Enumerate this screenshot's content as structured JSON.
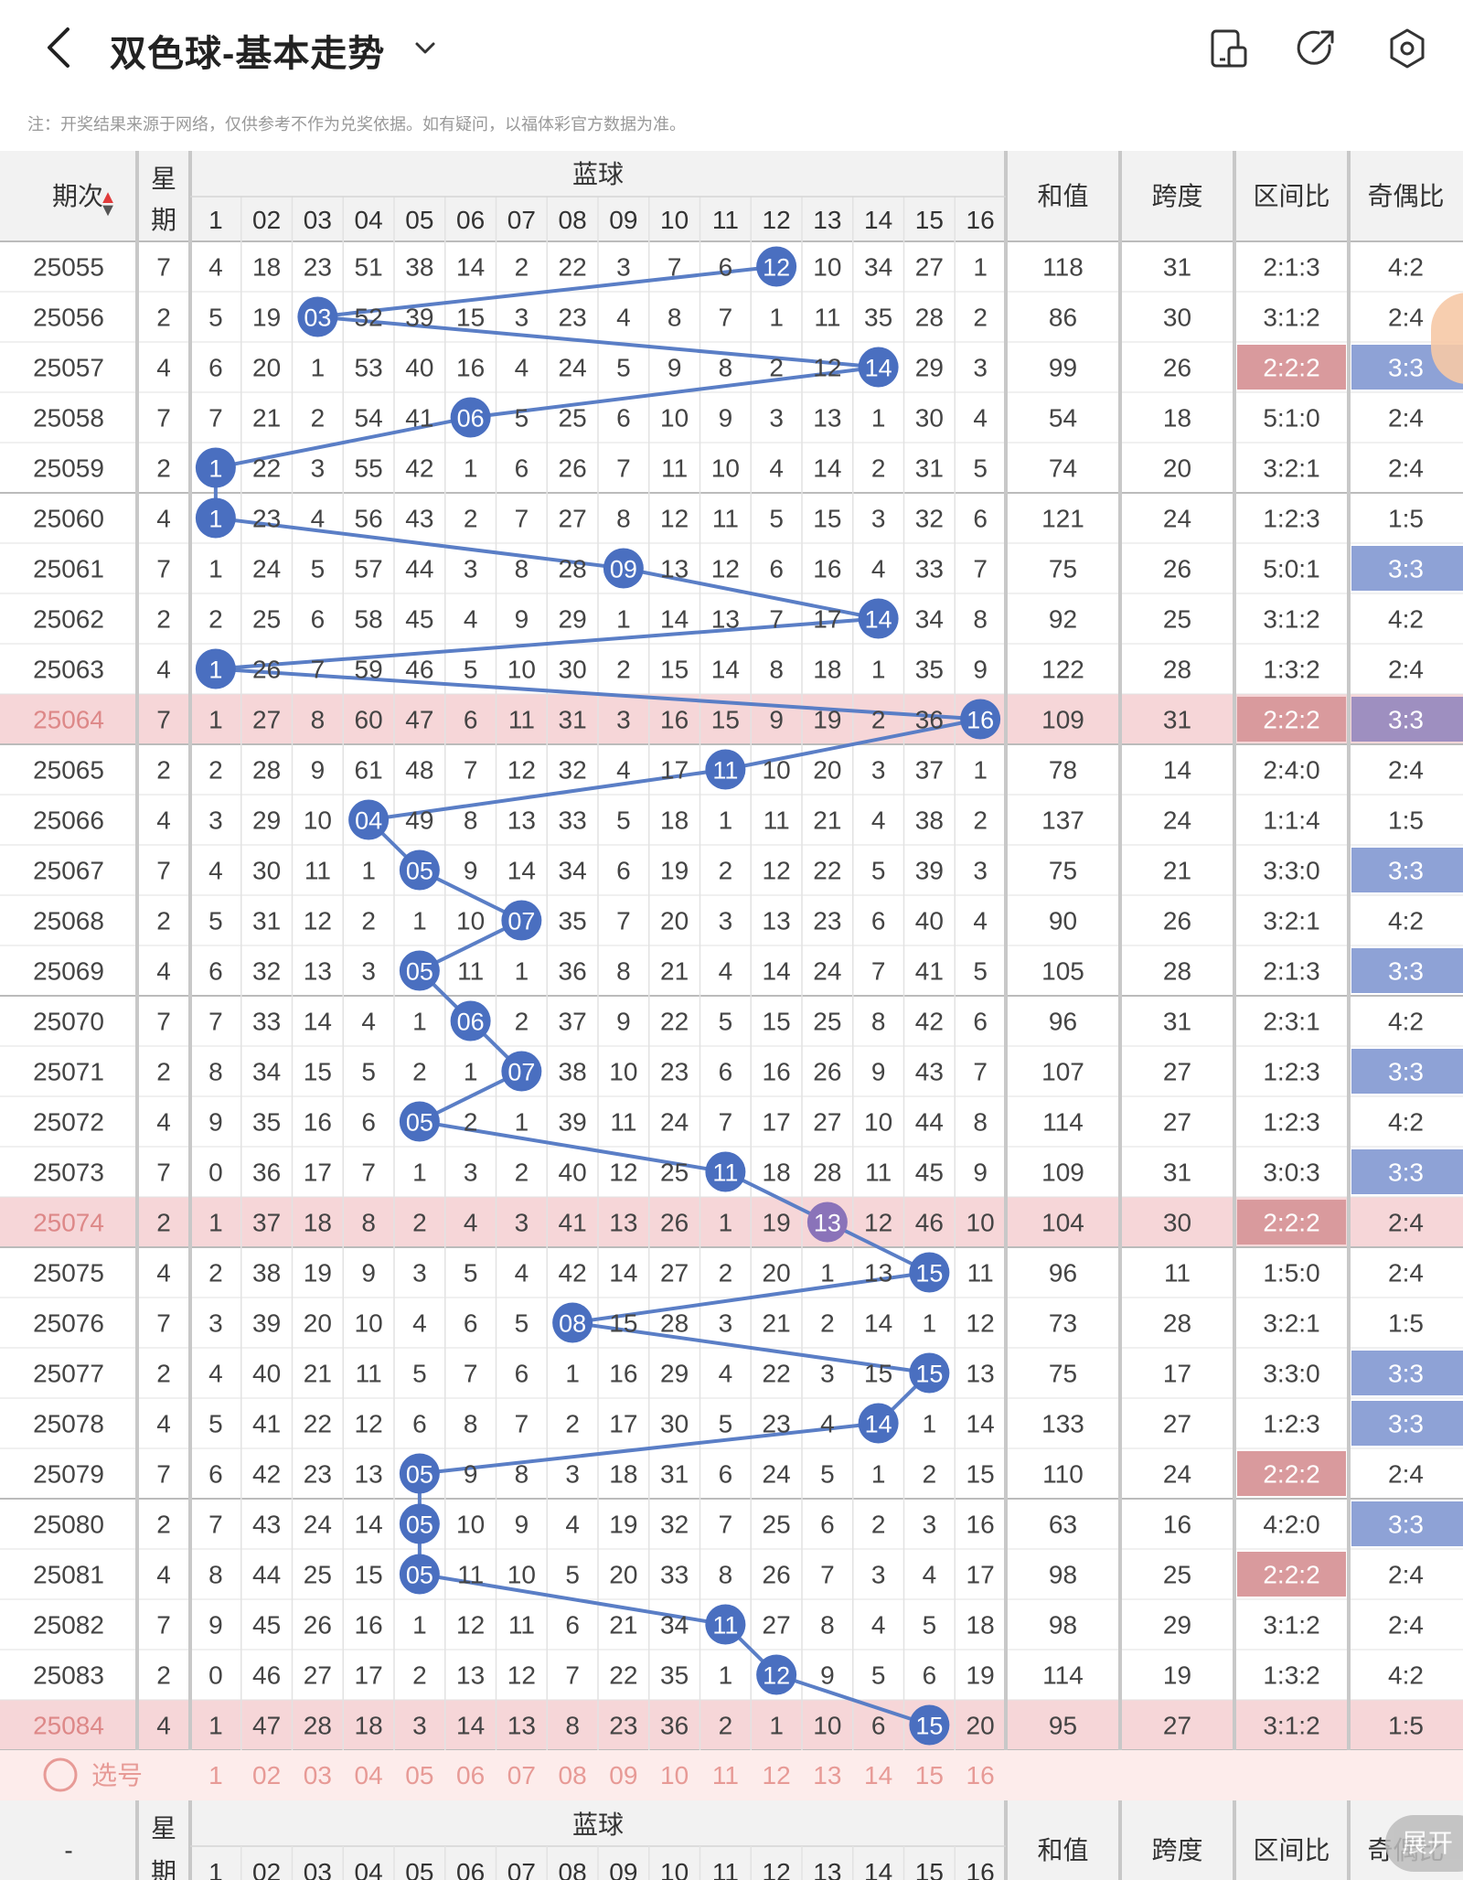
{
  "header": {
    "title": "双色球-基本走势",
    "icons": [
      "back-icon",
      "chevron-down-icon",
      "phone-icon",
      "share-icon",
      "settings-icon"
    ]
  },
  "note": "注：开奖结果来源于网络，仅供参考不作为兑奖依据。如有疑问，以福体彩官方数据为准。",
  "table": {
    "col_period": "期次",
    "col_week": "星\n期",
    "col_blue": "蓝球",
    "col_sum": "和值",
    "col_span": "跨度",
    "col_zone": "区间比",
    "col_oddeven": "奇偶比",
    "blue_labels": [
      "1",
      "02",
      "03",
      "04",
      "05",
      "06",
      "07",
      "08",
      "09",
      "10",
      "11",
      "12",
      "13",
      "14",
      "15",
      "16"
    ],
    "rows": [
      {
        "period": "25055",
        "week": "7",
        "cells": [
          "4",
          "18",
          "23",
          "51",
          "38",
          "14",
          "2",
          "22",
          "3",
          "7",
          "6",
          "12",
          "10",
          "34",
          "27",
          "1"
        ],
        "hit": 12,
        "sum": "118",
        "span": "31",
        "zone": "2:1:3",
        "oe": "4:2"
      },
      {
        "period": "25056",
        "week": "2",
        "cells": [
          "5",
          "19",
          "03",
          "52",
          "39",
          "15",
          "3",
          "23",
          "4",
          "8",
          "7",
          "1",
          "11",
          "35",
          "28",
          "2"
        ],
        "hit": 3,
        "sum": "86",
        "span": "30",
        "zone": "3:1:2",
        "oe": "2:4"
      },
      {
        "period": "25057",
        "week": "4",
        "cells": [
          "6",
          "20",
          "1",
          "53",
          "40",
          "16",
          "4",
          "24",
          "5",
          "9",
          "8",
          "2",
          "12",
          "14",
          "29",
          "3"
        ],
        "hit": 14,
        "sum": "99",
        "span": "26",
        "zone": "2:2:2",
        "oe": "3:3"
      },
      {
        "period": "25058",
        "week": "7",
        "cells": [
          "7",
          "21",
          "2",
          "54",
          "41",
          "06",
          "5",
          "25",
          "6",
          "10",
          "9",
          "3",
          "13",
          "1",
          "30",
          "4"
        ],
        "hit": 6,
        "sum": "54",
        "span": "18",
        "zone": "5:1:0",
        "oe": "2:4"
      },
      {
        "period": "25059",
        "week": "2",
        "cells": [
          "1",
          "22",
          "3",
          "55",
          "42",
          "1",
          "6",
          "26",
          "7",
          "11",
          "10",
          "4",
          "14",
          "2",
          "31",
          "5"
        ],
        "hit": 1,
        "sum": "74",
        "span": "20",
        "zone": "3:2:1",
        "oe": "2:4"
      },
      {
        "period": "25060",
        "week": "4",
        "cells": [
          "1",
          "23",
          "4",
          "56",
          "43",
          "2",
          "7",
          "27",
          "8",
          "12",
          "11",
          "5",
          "15",
          "3",
          "32",
          "6"
        ],
        "hit": 1,
        "sum": "121",
        "span": "24",
        "zone": "1:2:3",
        "oe": "1:5"
      },
      {
        "period": "25061",
        "week": "7",
        "cells": [
          "1",
          "24",
          "5",
          "57",
          "44",
          "3",
          "8",
          "28",
          "09",
          "13",
          "12",
          "6",
          "16",
          "4",
          "33",
          "7"
        ],
        "hit": 9,
        "sum": "75",
        "span": "26",
        "zone": "5:0:1",
        "oe": "3:3"
      },
      {
        "period": "25062",
        "week": "2",
        "cells": [
          "2",
          "25",
          "6",
          "58",
          "45",
          "4",
          "9",
          "29",
          "1",
          "14",
          "13",
          "7",
          "17",
          "14",
          "34",
          "8"
        ],
        "hit": 14,
        "sum": "92",
        "span": "25",
        "zone": "3:1:2",
        "oe": "4:2"
      },
      {
        "period": "25063",
        "week": "4",
        "cells": [
          "1",
          "26",
          "7",
          "59",
          "46",
          "5",
          "10",
          "30",
          "2",
          "15",
          "14",
          "8",
          "18",
          "1",
          "35",
          "9"
        ],
        "hit": 1,
        "sum": "122",
        "span": "28",
        "zone": "1:3:2",
        "oe": "2:4"
      },
      {
        "period": "25064",
        "week": "7",
        "cells": [
          "1",
          "27",
          "8",
          "60",
          "47",
          "6",
          "11",
          "31",
          "3",
          "16",
          "15",
          "9",
          "19",
          "2",
          "36",
          "16"
        ],
        "hit": 16,
        "sum": "109",
        "span": "31",
        "zone": "2:2:2",
        "oe": "3:3"
      },
      {
        "period": "25065",
        "week": "2",
        "cells": [
          "2",
          "28",
          "9",
          "61",
          "48",
          "7",
          "12",
          "32",
          "4",
          "17",
          "11",
          "10",
          "20",
          "3",
          "37",
          "1"
        ],
        "hit": 11,
        "sum": "78",
        "span": "14",
        "zone": "2:4:0",
        "oe": "2:4"
      },
      {
        "period": "25066",
        "week": "4",
        "cells": [
          "3",
          "29",
          "10",
          "04",
          "49",
          "8",
          "13",
          "33",
          "5",
          "18",
          "1",
          "11",
          "21",
          "4",
          "38",
          "2"
        ],
        "hit": 4,
        "sum": "137",
        "span": "24",
        "zone": "1:1:4",
        "oe": "1:5"
      },
      {
        "period": "25067",
        "week": "7",
        "cells": [
          "4",
          "30",
          "11",
          "1",
          "05",
          "9",
          "14",
          "34",
          "6",
          "19",
          "2",
          "12",
          "22",
          "5",
          "39",
          "3"
        ],
        "hit": 5,
        "sum": "75",
        "span": "21",
        "zone": "3:3:0",
        "oe": "3:3"
      },
      {
        "period": "25068",
        "week": "2",
        "cells": [
          "5",
          "31",
          "12",
          "2",
          "1",
          "10",
          "07",
          "35",
          "7",
          "20",
          "3",
          "13",
          "23",
          "6",
          "40",
          "4"
        ],
        "hit": 7,
        "sum": "90",
        "span": "26",
        "zone": "3:2:1",
        "oe": "4:2"
      },
      {
        "period": "25069",
        "week": "4",
        "cells": [
          "6",
          "32",
          "13",
          "3",
          "05",
          "11",
          "1",
          "36",
          "8",
          "21",
          "4",
          "14",
          "24",
          "7",
          "41",
          "5"
        ],
        "hit": 5,
        "sum": "105",
        "span": "28",
        "zone": "2:1:3",
        "oe": "3:3"
      },
      {
        "period": "25070",
        "week": "7",
        "cells": [
          "7",
          "33",
          "14",
          "4",
          "1",
          "06",
          "2",
          "37",
          "9",
          "22",
          "5",
          "15",
          "25",
          "8",
          "42",
          "6"
        ],
        "hit": 6,
        "sum": "96",
        "span": "31",
        "zone": "2:3:1",
        "oe": "4:2"
      },
      {
        "period": "25071",
        "week": "2",
        "cells": [
          "8",
          "34",
          "15",
          "5",
          "2",
          "1",
          "07",
          "38",
          "10",
          "23",
          "6",
          "16",
          "26",
          "9",
          "43",
          "7"
        ],
        "hit": 7,
        "sum": "107",
        "span": "27",
        "zone": "1:2:3",
        "oe": "3:3"
      },
      {
        "period": "25072",
        "week": "4",
        "cells": [
          "9",
          "35",
          "16",
          "6",
          "05",
          "2",
          "1",
          "39",
          "11",
          "24",
          "7",
          "17",
          "27",
          "10",
          "44",
          "8"
        ],
        "hit": 5,
        "sum": "114",
        "span": "27",
        "zone": "1:2:3",
        "oe": "4:2"
      },
      {
        "period": "25073",
        "week": "7",
        "cells": [
          "0",
          "36",
          "17",
          "7",
          "1",
          "3",
          "2",
          "40",
          "12",
          "25",
          "11",
          "18",
          "28",
          "11",
          "45",
          "9"
        ],
        "hit": 11,
        "sum": "109",
        "span": "31",
        "zone": "3:0:3",
        "oe": "3:3"
      },
      {
        "period": "25074",
        "week": "2",
        "cells": [
          "1",
          "37",
          "18",
          "8",
          "2",
          "4",
          "3",
          "41",
          "13",
          "26",
          "1",
          "19",
          "13",
          "12",
          "46",
          "10"
        ],
        "hit": 13,
        "sum": "104",
        "span": "30",
        "zone": "2:2:2",
        "oe": "2:4"
      },
      {
        "period": "25075",
        "week": "4",
        "cells": [
          "2",
          "38",
          "19",
          "9",
          "3",
          "5",
          "4",
          "42",
          "14",
          "27",
          "2",
          "20",
          "1",
          "13",
          "15",
          "11"
        ],
        "hit": 15,
        "sum": "96",
        "span": "11",
        "zone": "1:5:0",
        "oe": "2:4"
      },
      {
        "period": "25076",
        "week": "7",
        "cells": [
          "3",
          "39",
          "20",
          "10",
          "4",
          "6",
          "5",
          "08",
          "15",
          "28",
          "3",
          "21",
          "2",
          "14",
          "1",
          "12"
        ],
        "hit": 8,
        "sum": "73",
        "span": "28",
        "zone": "3:2:1",
        "oe": "1:5"
      },
      {
        "period": "25077",
        "week": "2",
        "cells": [
          "4",
          "40",
          "21",
          "11",
          "5",
          "7",
          "6",
          "1",
          "16",
          "29",
          "4",
          "22",
          "3",
          "15",
          "15",
          "13"
        ],
        "hit": 15,
        "sum": "75",
        "span": "17",
        "zone": "3:3:0",
        "oe": "3:3"
      },
      {
        "period": "25078",
        "week": "4",
        "cells": [
          "5",
          "41",
          "22",
          "12",
          "6",
          "8",
          "7",
          "2",
          "17",
          "30",
          "5",
          "23",
          "4",
          "14",
          "1",
          "14"
        ],
        "hit": 14,
        "sum": "133",
        "span": "27",
        "zone": "1:2:3",
        "oe": "3:3"
      },
      {
        "period": "25079",
        "week": "7",
        "cells": [
          "6",
          "42",
          "23",
          "13",
          "05",
          "9",
          "8",
          "3",
          "18",
          "31",
          "6",
          "24",
          "5",
          "1",
          "2",
          "15"
        ],
        "hit": 5,
        "sum": "110",
        "span": "24",
        "zone": "2:2:2",
        "oe": "2:4"
      },
      {
        "period": "25080",
        "week": "2",
        "cells": [
          "7",
          "43",
          "24",
          "14",
          "05",
          "10",
          "9",
          "4",
          "19",
          "32",
          "7",
          "25",
          "6",
          "2",
          "3",
          "16"
        ],
        "hit": 5,
        "sum": "63",
        "span": "16",
        "zone": "4:2:0",
        "oe": "3:3"
      },
      {
        "period": "25081",
        "week": "4",
        "cells": [
          "8",
          "44",
          "25",
          "15",
          "05",
          "11",
          "10",
          "5",
          "20",
          "33",
          "8",
          "26",
          "7",
          "3",
          "4",
          "17"
        ],
        "hit": 5,
        "sum": "98",
        "span": "25",
        "zone": "2:2:2",
        "oe": "2:4"
      },
      {
        "period": "25082",
        "week": "7",
        "cells": [
          "9",
          "45",
          "26",
          "16",
          "1",
          "12",
          "11",
          "6",
          "21",
          "34",
          "11",
          "27",
          "8",
          "4",
          "5",
          "18"
        ],
        "hit": 11,
        "sum": "98",
        "span": "29",
        "zone": "3:1:2",
        "oe": "2:4"
      },
      {
        "period": "25083",
        "week": "2",
        "cells": [
          "0",
          "46",
          "27",
          "17",
          "2",
          "13",
          "12",
          "7",
          "22",
          "35",
          "1",
          "12",
          "9",
          "5",
          "6",
          "19"
        ],
        "hit": 12,
        "sum": "114",
        "span": "19",
        "zone": "1:3:2",
        "oe": "4:2"
      },
      {
        "period": "25084",
        "week": "4",
        "cells": [
          "1",
          "47",
          "28",
          "18",
          "3",
          "14",
          "13",
          "8",
          "23",
          "36",
          "2",
          "1",
          "10",
          "6",
          "15",
          "20"
        ],
        "hit": 15,
        "sum": "95",
        "span": "27",
        "zone": "3:1:2",
        "oe": "1:5"
      }
    ],
    "highlight_rows": [
      "25064",
      "25074",
      "25084"
    ],
    "zone_highlight": [
      "25057",
      "25064",
      "25074",
      "25079",
      "25081"
    ],
    "oe_highlight": [
      "25057",
      "25061",
      "25064",
      "25067",
      "25069",
      "25071",
      "25073",
      "25077",
      "25078",
      "25080"
    ],
    "select_label": "选号",
    "footer_period": "-"
  },
  "fab_label": "展开",
  "colors": {
    "ball": "#4a6fc0",
    "ball_purple": "#8a73b9",
    "line": "#5a7ec6",
    "row_highlight": "#f6d6d8",
    "zone_highlight": "#d99a9d",
    "oe_highlight": "#8ea2d6",
    "oe_purple": "#9e8fc0",
    "select_bg": "#fdeceb",
    "select_text": "#e79a96",
    "header_bg": "#f2f2f2"
  }
}
